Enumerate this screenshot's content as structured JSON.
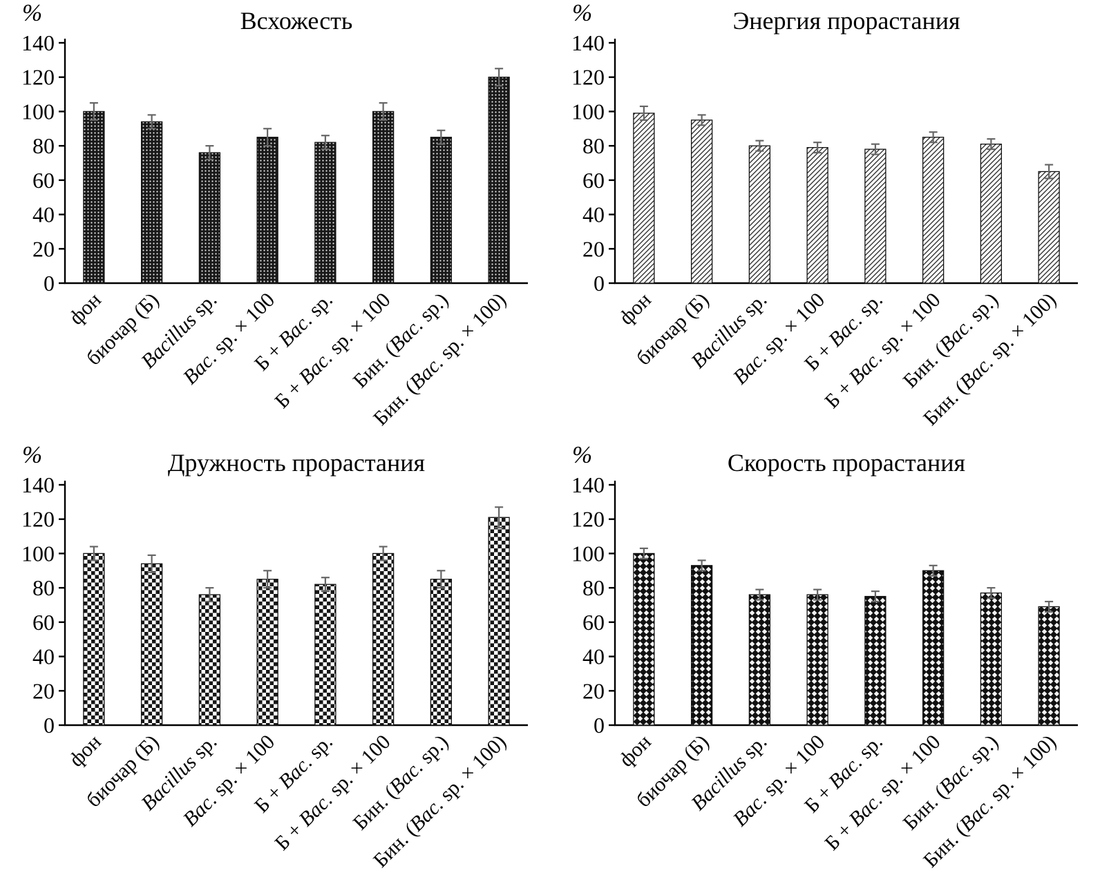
{
  "colors": {
    "ink": "#000000",
    "bar_outline": "#111111",
    "error_bar": "#666666",
    "dark_fill": "#191919",
    "light_fill": "#ffffff",
    "hatch_stroke": "#333333"
  },
  "axis": {
    "unit_label": "%",
    "ylim": [
      0,
      140
    ],
    "yticks": [
      0,
      20,
      40,
      60,
      80,
      100,
      120,
      140
    ]
  },
  "chart_data": [
    {
      "type": "bar",
      "title": "Всхожесть",
      "ylabel": "%",
      "xlabel": "",
      "ylim": [
        0,
        140
      ],
      "yticks": [
        0,
        20,
        40,
        60,
        80,
        100,
        120,
        140
      ],
      "grid": false,
      "legend": "none",
      "pattern": "dots-dark",
      "categories": [
        "фон",
        "биочар (Б)",
        "Bacillus sp.",
        "Bac. sp. × 100",
        "Б + Bac. sp.",
        "Б + Bac. sp. × 100",
        "Бин. (Bac. sp.)",
        "Бин. (Bac. sp. × 100)"
      ],
      "values": [
        100,
        94,
        76,
        85,
        82,
        100,
        85,
        120
      ],
      "errors": [
        5,
        4,
        4,
        5,
        4,
        5,
        4,
        5
      ]
    },
    {
      "type": "bar",
      "title": "Энергия прорастания",
      "ylabel": "%",
      "xlabel": "",
      "ylim": [
        0,
        140
      ],
      "yticks": [
        0,
        20,
        40,
        60,
        80,
        100,
        120,
        140
      ],
      "grid": false,
      "legend": "none",
      "pattern": "hatch-light",
      "categories": [
        "фон",
        "биочар (Б)",
        "Bacillus sp.",
        "Bac. sp. × 100",
        "Б + Bac. sp.",
        "Б + Bac. sp. × 100",
        "Бин. (Bac. sp.)",
        "Бин. (Bac. sp. × 100)"
      ],
      "values": [
        99,
        95,
        80,
        79,
        78,
        85,
        81,
        65
      ],
      "errors": [
        4,
        3,
        3,
        3,
        3,
        3,
        3,
        4
      ]
    },
    {
      "type": "bar",
      "title": "Дружность прорастания",
      "ylabel": "%",
      "xlabel": "",
      "ylim": [
        0,
        140
      ],
      "yticks": [
        0,
        20,
        40,
        60,
        80,
        100,
        120,
        140
      ],
      "grid": false,
      "legend": "none",
      "pattern": "checker",
      "categories": [
        "фон",
        "биочар (Б)",
        "Bacillus sp.",
        "Bac. sp. × 100",
        "Б + Bac. sp.",
        "Б + Bac. sp. × 100",
        "Бин. (Bac. sp.)",
        "Бин. (Bac. sp. × 100)"
      ],
      "values": [
        100,
        94,
        76,
        85,
        82,
        100,
        85,
        121
      ],
      "errors": [
        4,
        5,
        4,
        5,
        4,
        4,
        5,
        6
      ]
    },
    {
      "type": "bar",
      "title": "Скорость прорастания",
      "ylabel": "%",
      "xlabel": "",
      "ylim": [
        0,
        140
      ],
      "yticks": [
        0,
        20,
        40,
        60,
        80,
        100,
        120,
        140
      ],
      "grid": false,
      "legend": "none",
      "pattern": "diamond-dark",
      "categories": [
        "фон",
        "биочар (Б)",
        "Bacillus sp.",
        "Bac. sp. × 100",
        "Б + Bac. sp.",
        "Б + Bac. sp. × 100",
        "Бин. (Bac. sp.)",
        "Бин. (Bac. sp. × 100)"
      ],
      "values": [
        100,
        93,
        76,
        76,
        75,
        90,
        77,
        69
      ],
      "errors": [
        3,
        3,
        3,
        3,
        3,
        3,
        3,
        3
      ]
    }
  ]
}
